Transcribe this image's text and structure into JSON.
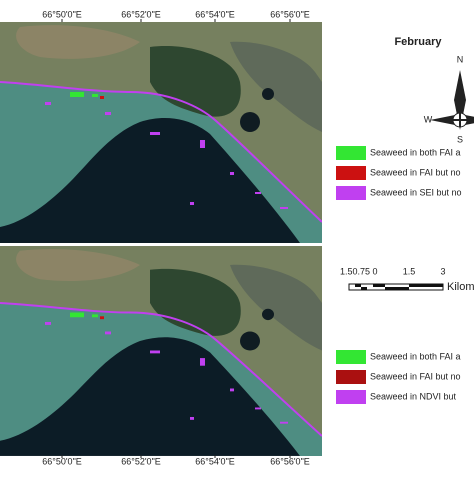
{
  "title": "February",
  "top_axis": {
    "labels": [
      "66°50'0\"E",
      "66°52'0\"E",
      "66°54'0\"E",
      "66°56'0\"E"
    ]
  },
  "bottom_axis": {
    "labels": [
      "66°50'0\"E",
      "66°52'0\"E",
      "66°54'0\"E",
      "66°56'0\"E"
    ]
  },
  "compass": {
    "north": "N",
    "south": "S",
    "west": "W"
  },
  "scale_bar": {
    "labels": [
      "1.50.75 0",
      "1.5",
      "3"
    ],
    "unit": "Kilom"
  },
  "legends": [
    {
      "items": [
        {
          "label": "Seaweed in both FAI a",
          "color": "#33e633"
        },
        {
          "label": "Seaweed in FAI but no",
          "color": "#cc1111"
        },
        {
          "label": "Seaweed in SEI but no",
          "color": "#c040f0"
        }
      ]
    },
    {
      "items": [
        {
          "label": "Seaweed in both FAI a",
          "color": "#33e633"
        },
        {
          "label": "Seaweed in FAI but no",
          "color": "#aa1010"
        },
        {
          "label": "Seaweed in NDVI but",
          "color": "#c040f0"
        }
      ]
    }
  ]
}
